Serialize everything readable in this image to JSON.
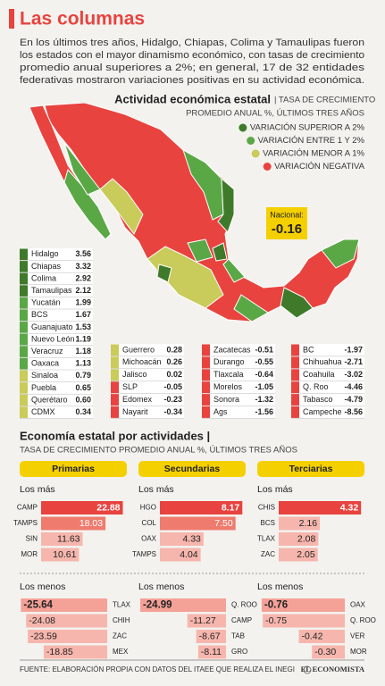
{
  "header": {
    "title": "Las columnas",
    "intro": [
      "En los últimos tres años, Hidalgo, Chiapas, Colima  y Tamaulipas fueron",
      "los estados con el mayor dinamismo económico, con tasas de crecimiento",
      "promedio anual superiores a 2%; en general, 17 de 32 entidades",
      "federativas mostraron variaciones positivas en su actividad económica."
    ]
  },
  "map": {
    "title": "Actividad económica estatal",
    "subtitle_1": "| TASA DE CRECIMIENTO",
    "subtitle_2": "PROMEDIO ANUAL %, ÚLTIMOS TRES AÑOS",
    "legend": [
      {
        "label": "VARIACIÓN SUPERIOR A 2%",
        "color": "#3f7a2a"
      },
      {
        "label": "VARIACIÓN ENTRE 1 Y 2%",
        "color": "#5aa746"
      },
      {
        "label": "VARIACIÓN MENOR A 1%",
        "color": "#c9cb5a"
      },
      {
        "label": "VARIACIÓN NEGATIVA",
        "color": "#e8433f"
      }
    ],
    "national": {
      "label": "Nacional:",
      "value": "-0.16"
    },
    "tables": [
      {
        "rows": [
          {
            "state": "Hidalgo",
            "value": "3.56",
            "color": "#3f7a2a"
          },
          {
            "state": "Chiapas",
            "value": "3.32",
            "color": "#3f7a2a"
          },
          {
            "state": "Colima",
            "value": "2.92",
            "color": "#3f7a2a"
          },
          {
            "state": "Tamaulipas",
            "value": "2.12",
            "color": "#3f7a2a"
          },
          {
            "state": "Yucatán",
            "value": "1.99",
            "color": "#5aa746"
          },
          {
            "state": "BCS",
            "value": "1.67",
            "color": "#5aa746"
          },
          {
            "state": "Guanajuato",
            "value": "1.53",
            "color": "#5aa746"
          },
          {
            "state": "Nuevo León",
            "value": "1.19",
            "color": "#5aa746"
          },
          {
            "state": "Veracruz",
            "value": "1.18",
            "color": "#5aa746"
          },
          {
            "state": "Oaxaca",
            "value": "1.13",
            "color": "#5aa746"
          },
          {
            "state": "Sinaloa",
            "value": "0.79",
            "color": "#c9cb5a"
          },
          {
            "state": "Puebla",
            "value": "0.65",
            "color": "#c9cb5a"
          },
          {
            "state": "Querétaro",
            "value": "0.60",
            "color": "#c9cb5a"
          },
          {
            "state": "CDMX",
            "value": "0.34",
            "color": "#c9cb5a"
          }
        ]
      },
      {
        "rows": [
          {
            "state": "Guerrero",
            "value": "0.28",
            "color": "#c9cb5a"
          },
          {
            "state": "Michoacán",
            "value": "0.26",
            "color": "#c9cb5a"
          },
          {
            "state": "Jalisco",
            "value": "0.02",
            "color": "#c9cb5a"
          },
          {
            "state": "SLP",
            "value": "-0.05",
            "color": "#e8433f"
          },
          {
            "state": "Edomex",
            "value": "-0.23",
            "color": "#e8433f"
          },
          {
            "state": "Nayarit",
            "value": "-0.34",
            "color": "#e8433f"
          }
        ]
      },
      {
        "rows": [
          {
            "state": "Zacatecas",
            "value": "-0.51",
            "color": "#e8433f"
          },
          {
            "state": "Durango",
            "value": "-0.55",
            "color": "#e8433f"
          },
          {
            "state": "Tlaxcala",
            "value": "-0.64",
            "color": "#e8433f"
          },
          {
            "state": "Morelos",
            "value": "-1.05",
            "color": "#e8433f"
          },
          {
            "state": "Sonora",
            "value": "-1.32",
            "color": "#e8433f"
          },
          {
            "state": "Ags",
            "value": "-1.56",
            "color": "#e8433f"
          }
        ]
      },
      {
        "rows": [
          {
            "state": "BC",
            "value": "-1.97",
            "color": "#e8433f"
          },
          {
            "state": "Chihuahua",
            "value": "-2.71",
            "color": "#e8433f"
          },
          {
            "state": "Coahuila",
            "value": "-3.02",
            "color": "#e8433f"
          },
          {
            "state": "Q. Roo",
            "value": "-4.46",
            "color": "#e8433f"
          },
          {
            "state": "Tabasco",
            "value": "-4.79",
            "color": "#e8433f"
          },
          {
            "state": "Campeche",
            "value": "-8.56",
            "color": "#e8433f"
          }
        ]
      }
    ]
  },
  "activities": {
    "title": "Economía estatal por actividades |",
    "subtitle": "TASA DE CRECIMIENTO PROMEDIO ANUAL %, ÚLTIMOS TRES AÑOS",
    "headers": [
      "Primarias",
      "Secundarias",
      "Terciarias"
    ],
    "top_label": "Los más",
    "bottom_label": "Los menos"
  },
  "chart_data": [
    {
      "type": "bar",
      "orientation": "horizontal",
      "categories": [
        "CAMP",
        "TAMPS",
        "SIN",
        "MOR"
      ],
      "values": [
        22.88,
        18.03,
        11.63,
        10.61
      ],
      "value_labels": [
        "22.88",
        "18.03",
        "11.63",
        "10.61"
      ],
      "colors": [
        "#e8433f",
        "#ef7b6e",
        "#f6b6ad",
        "#f6b6ad"
      ],
      "xlim": [
        0,
        24
      ]
    },
    {
      "type": "bar",
      "orientation": "horizontal",
      "categories": [
        "TLAX",
        "CHIH",
        "ZAC",
        "MEX"
      ],
      "values": [
        -25.64,
        -24.08,
        -23.59,
        -18.85
      ],
      "value_labels": [
        "-25.64",
        "-24.08",
        "-23.59",
        "-18.85"
      ],
      "colors": [
        "#f4a197",
        "#f6b6ad",
        "#f6b6ad",
        "#f6b6ad"
      ],
      "xlim": [
        -26,
        0
      ]
    },
    {
      "type": "bar",
      "orientation": "horizontal",
      "categories": [
        "HGO",
        "COL",
        "OAX",
        "TAMPS"
      ],
      "values": [
        8.17,
        7.5,
        4.33,
        4.04
      ],
      "value_labels": [
        "8.17",
        "7.50",
        "4.33",
        "4.04"
      ],
      "colors": [
        "#e8433f",
        "#ef7b6e",
        "#f6b6ad",
        "#f6b6ad"
      ],
      "xlim": [
        0,
        8.5
      ]
    },
    {
      "type": "bar",
      "orientation": "horizontal",
      "categories": [
        "Q. ROO",
        "CAMP",
        "TAB",
        "GRO"
      ],
      "values": [
        -24.99,
        -11.27,
        -8.67,
        -8.11
      ],
      "value_labels": [
        "-24.99",
        "-11.27",
        "-8.67",
        "-8.11"
      ],
      "colors": [
        "#f4a197",
        "#f6b6ad",
        "#f6b6ad",
        "#f6b6ad"
      ],
      "xlim": [
        -25.5,
        0
      ]
    },
    {
      "type": "bar",
      "orientation": "horizontal",
      "categories": [
        "CHIS",
        "BCS",
        "TLAX",
        "ZAC"
      ],
      "values": [
        4.32,
        2.16,
        2.08,
        2.05
      ],
      "value_labels": [
        "4.32",
        "2.16",
        "2.08",
        "2.05"
      ],
      "colors": [
        "#e8433f",
        "#f6b6ad",
        "#f6b6ad",
        "#f6b6ad"
      ],
      "xlim": [
        0,
        4.5
      ]
    },
    {
      "type": "bar",
      "orientation": "horizontal",
      "categories": [
        "OAX",
        "Q. ROO",
        "VER",
        "MOR"
      ],
      "values": [
        -0.76,
        -0.75,
        -0.42,
        -0.3
      ],
      "value_labels": [
        "-0.76",
        "-0.75",
        "-0.42",
        "-0.30"
      ],
      "colors": [
        "#f4a197",
        "#f6b6ad",
        "#f6b6ad",
        "#f6b6ad"
      ],
      "xlim": [
        -0.8,
        0
      ]
    }
  ],
  "footer": {
    "source": "FUENTE: ELABORACIÓN PROPIA CON DATOS DEL ITAEE QUE REALIZA EL INEGI",
    "brand": "EL ECONOMISTA"
  }
}
